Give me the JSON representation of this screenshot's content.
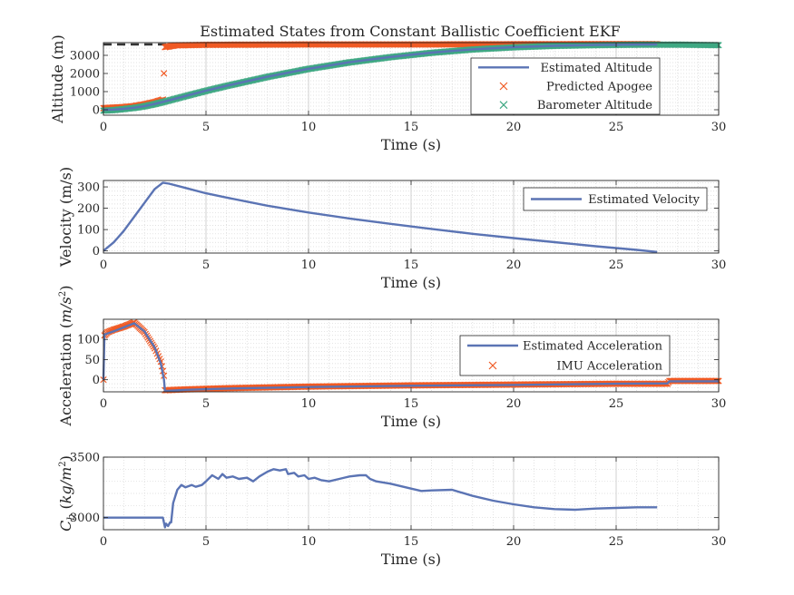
{
  "title": "Estimated States from Constant Ballistic Coefficient EKF",
  "colors": {
    "estimate": "#5b74b4",
    "orange": "#f05a24",
    "green": "#3fa883",
    "dashed": "#333333",
    "grid": "#c8c8c8"
  },
  "chart_data": [
    {
      "type": "line",
      "xlabel": "Time (s)",
      "ylabel": "Altitude (m)",
      "xlim": [
        0,
        30
      ],
      "ylim": [
        -300,
        3700
      ],
      "xticks": [
        0,
        5,
        10,
        15,
        20,
        25,
        30
      ],
      "yticks": [
        0,
        1000,
        2000,
        3000
      ],
      "grid": "minor",
      "legend_placement": "top-right",
      "reference_line": {
        "y": 3600,
        "style": "dashed",
        "x": [
          0,
          30
        ]
      },
      "series": [
        {
          "name": "Estimated Altitude",
          "style": "line",
          "x": [
            0,
            0.5,
            1,
            1.5,
            2,
            2.5,
            3,
            4,
            5,
            6,
            8,
            10,
            12,
            14,
            16,
            18,
            20,
            22,
            24,
            26,
            27
          ],
          "y": [
            0,
            12,
            48,
            110,
            200,
            320,
            460,
            760,
            1050,
            1320,
            1820,
            2260,
            2620,
            2910,
            3150,
            3330,
            3450,
            3525,
            3570,
            3590,
            3595
          ]
        },
        {
          "name": "Predicted Apogee",
          "style": "marker",
          "x": [
            0,
            0.5,
            1,
            1.5,
            2,
            2.5,
            2.9,
            3,
            3.5,
            5,
            10,
            15,
            20,
            25,
            27
          ],
          "y": [
            90,
            120,
            150,
            200,
            300,
            420,
            560,
            3450,
            3550,
            3580,
            3600,
            3600,
            3610,
            3620,
            3620
          ]
        },
        {
          "name": "Barometer Altitude",
          "style": "marker",
          "x": [
            0,
            0.5,
            1,
            1.5,
            2,
            2.5,
            3,
            4,
            5,
            6,
            8,
            10,
            12,
            14,
            16,
            18,
            20,
            22,
            24,
            26,
            28,
            30
          ],
          "y": [
            -50,
            -20,
            40,
            100,
            190,
            310,
            450,
            750,
            1040,
            1310,
            1810,
            2250,
            2610,
            2900,
            3140,
            3320,
            3440,
            3520,
            3560,
            3585,
            3590,
            3560
          ]
        }
      ]
    },
    {
      "type": "line",
      "xlabel": "Time (s)",
      "ylabel": "Velocity (m/s)",
      "xlim": [
        0,
        30
      ],
      "ylim": [
        -10,
        330
      ],
      "xticks": [
        0,
        5,
        10,
        15,
        20,
        25,
        30
      ],
      "yticks": [
        0,
        100,
        200,
        300
      ],
      "grid": "minor",
      "legend_placement": "top-right",
      "series": [
        {
          "name": "Estimated Velocity",
          "style": "line",
          "x": [
            0,
            0.5,
            1,
            1.5,
            2,
            2.5,
            2.9,
            3.2,
            4,
            5,
            6,
            8,
            10,
            12,
            14,
            16,
            18,
            20,
            22,
            24,
            26,
            27
          ],
          "y": [
            0,
            40,
            95,
            160,
            225,
            290,
            320,
            315,
            295,
            270,
            250,
            212,
            180,
            152,
            127,
            103,
            80,
            60,
            41,
            22,
            5,
            -5
          ]
        }
      ]
    },
    {
      "type": "line",
      "xlabel": "Time (s)",
      "ylabel": "Acceleration",
      "ylabel_unit": "m/s",
      "ylabel_unit_exponent": "2",
      "xlim": [
        0,
        30
      ],
      "ylim": [
        -30,
        150
      ],
      "xticks": [
        0,
        5,
        10,
        15,
        20,
        25,
        30
      ],
      "yticks": [
        0,
        50,
        100
      ],
      "grid": "minor",
      "legend_placement": "center-right",
      "series": [
        {
          "name": "Estimated Acceleration",
          "style": "line",
          "x": [
            0,
            0.05,
            0.5,
            1,
            1.5,
            2,
            2.5,
            2.8,
            2.95,
            3,
            4,
            6,
            10,
            15,
            20,
            25,
            27.5,
            27.6,
            30
          ],
          "y": [
            0,
            112,
            120,
            130,
            140,
            120,
            80,
            40,
            0,
            -28,
            -25,
            -22,
            -18,
            -15,
            -13,
            -10,
            -9,
            -4,
            -4
          ]
        },
        {
          "name": "IMU Acceleration",
          "style": "marker",
          "x": [
            0,
            0.05,
            0.2,
            0.5,
            1,
            1.5,
            2,
            2.5,
            2.8,
            2.95,
            3,
            4,
            6,
            10,
            15,
            20,
            25,
            27.5,
            27.6,
            30
          ],
          "y": [
            0,
            110,
            118,
            124,
            132,
            142,
            118,
            78,
            45,
            10,
            -26,
            -24,
            -21,
            -17,
            -14,
            -12,
            -10,
            -10,
            -3,
            -3
          ]
        }
      ]
    },
    {
      "type": "line",
      "xlabel": "Time (s)",
      "ylabel": "C",
      "ylabel_subscript": "b",
      "ylabel_unit": "kg/m",
      "ylabel_unit_exponent": "2",
      "xlim": [
        0,
        30
      ],
      "ylim": [
        2900,
        3500
      ],
      "xticks": [
        0,
        5,
        10,
        15,
        20,
        25,
        30
      ],
      "yticks": [
        3000,
        3500
      ],
      "grid": "minor",
      "legend_placement": "none",
      "series": [
        {
          "style": "line",
          "x": [
            0,
            2.9,
            3.0,
            3.05,
            3.15,
            3.25,
            3.3,
            3.4,
            3.6,
            3.8,
            4.0,
            4.3,
            4.5,
            4.8,
            5.0,
            5.3,
            5.6,
            5.8,
            6.0,
            6.3,
            6.6,
            7.0,
            7.3,
            7.6,
            8.0,
            8.3,
            8.6,
            8.9,
            9.0,
            9.3,
            9.5,
            9.8,
            10.0,
            10.3,
            10.6,
            11.0,
            11.5,
            12.0,
            12.5,
            12.8,
            13.0,
            13.3,
            14.0,
            15.0,
            15.5,
            16.0,
            17.0,
            18.0,
            19.0,
            20.0,
            21.0,
            22.0,
            23.0,
            24.0,
            25.0,
            26.0,
            27.0
          ],
          "y": [
            3000,
            3000,
            2920,
            2950,
            2930,
            2960,
            2960,
            3120,
            3230,
            3270,
            3250,
            3270,
            3255,
            3270,
            3300,
            3350,
            3320,
            3360,
            3330,
            3340,
            3320,
            3330,
            3300,
            3340,
            3380,
            3400,
            3390,
            3400,
            3360,
            3370,
            3340,
            3350,
            3320,
            3330,
            3310,
            3300,
            3320,
            3340,
            3350,
            3350,
            3320,
            3300,
            3280,
            3240,
            3220,
            3225,
            3230,
            3180,
            3140,
            3110,
            3085,
            3070,
            3065,
            3075,
            3080,
            3085,
            3085
          ]
        }
      ]
    }
  ]
}
